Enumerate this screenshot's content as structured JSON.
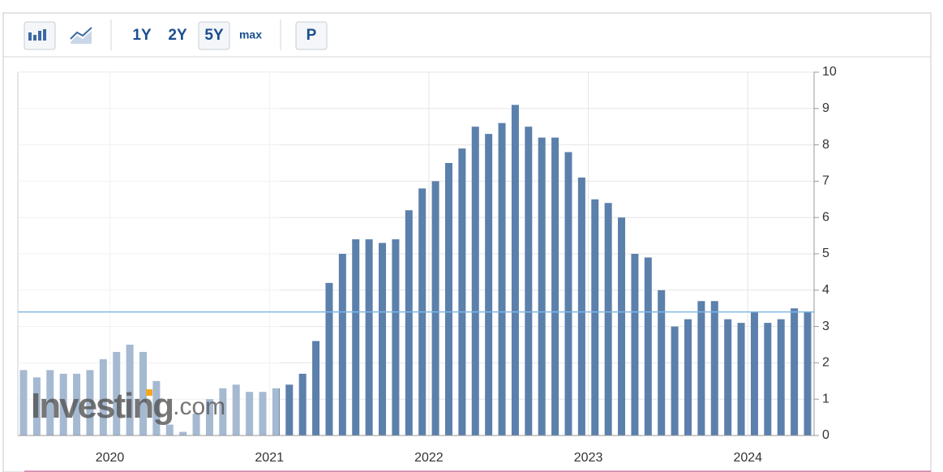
{
  "toolbar": {
    "ranges": [
      "1Y",
      "2Y",
      "5Y",
      "max"
    ],
    "selected": "5Y",
    "p_button": "P"
  },
  "chart_data": {
    "type": "bar",
    "categories": [
      null,
      null,
      null,
      null,
      null,
      null,
      null,
      "2020",
      null,
      null,
      null,
      null,
      null,
      null,
      null,
      null,
      null,
      null,
      null,
      "2021",
      null,
      null,
      null,
      null,
      null,
      null,
      null,
      null,
      null,
      null,
      null,
      "2022",
      null,
      null,
      null,
      null,
      null,
      null,
      null,
      null,
      null,
      null,
      null,
      "2023",
      null,
      null,
      null,
      null,
      null,
      null,
      null,
      null,
      null,
      null,
      null,
      "2024",
      null,
      null,
      null,
      null
    ],
    "values": [
      1.8,
      1.6,
      1.8,
      1.7,
      1.7,
      1.8,
      2.1,
      2.3,
      2.5,
      2.3,
      1.5,
      0.3,
      0.1,
      0.6,
      1.0,
      1.3,
      1.4,
      1.2,
      1.2,
      1.3,
      1.4,
      1.7,
      2.6,
      4.2,
      5.0,
      5.4,
      5.4,
      5.3,
      5.4,
      6.2,
      6.8,
      7.0,
      7.5,
      7.9,
      8.5,
      8.3,
      8.6,
      9.1,
      8.5,
      8.2,
      8.2,
      7.8,
      7.1,
      6.5,
      6.4,
      6.0,
      5.0,
      4.9,
      4.0,
      3.0,
      3.2,
      3.7,
      3.7,
      3.2,
      3.1,
      3.4,
      3.1,
      3.2,
      3.5,
      3.4
    ],
    "color": "#5b80ab",
    "last_value_line": 3.4,
    "ylim": [
      0,
      10
    ],
    "yticks": [
      0,
      1,
      2,
      3,
      4,
      5,
      6,
      7,
      8,
      9,
      10
    ],
    "grid": true,
    "watermark": "Investing",
    "watermark_suffix": ".com"
  }
}
